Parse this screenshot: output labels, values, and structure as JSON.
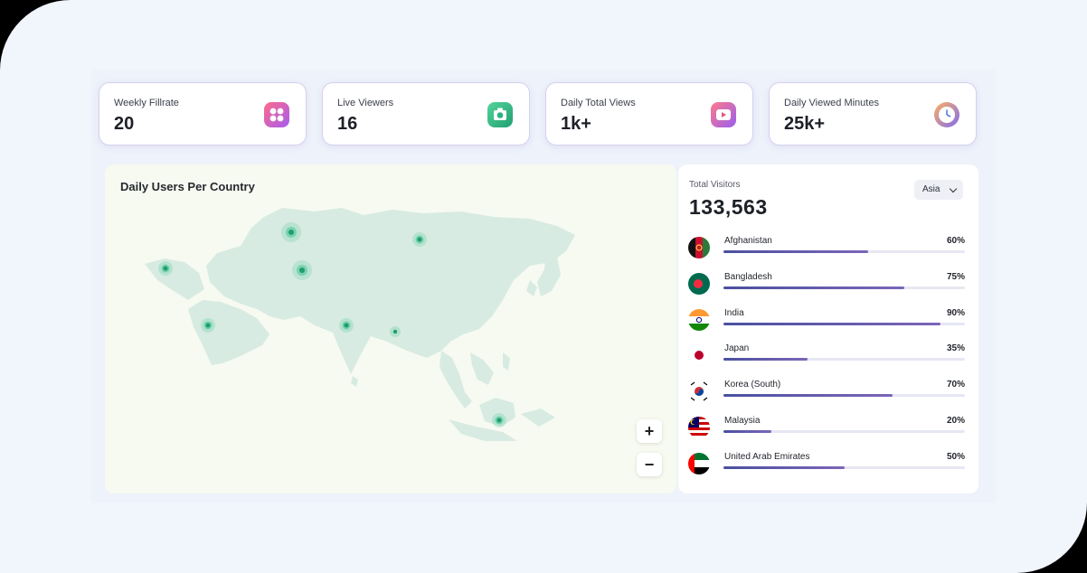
{
  "stats": [
    {
      "label": "Weekly Fillrate",
      "value": "20",
      "icon": "apps-grid-icon"
    },
    {
      "label": "Live Viewers",
      "value": "16",
      "icon": "camera-icon"
    },
    {
      "label": "Daily Total Views",
      "value": "1k+",
      "icon": "play-video-icon"
    },
    {
      "label": "Daily Viewed Minutes",
      "value": "25k+",
      "icon": "clock-icon"
    }
  ],
  "map": {
    "title": "Daily Users Per Country",
    "zoom_in_label": "+",
    "zoom_out_label": "−"
  },
  "visitors": {
    "label": "Total Visitors",
    "value": "133,563",
    "region": "Asia",
    "countries": [
      {
        "name": "Afghanistan",
        "percent": "60%",
        "fraction": 0.6
      },
      {
        "name": "Bangladesh",
        "percent": "75%",
        "fraction": 0.75
      },
      {
        "name": "India",
        "percent": "90%",
        "fraction": 0.9
      },
      {
        "name": "Japan",
        "percent": "35%",
        "fraction": 0.35
      },
      {
        "name": "Korea (South)",
        "percent": "70%",
        "fraction": 0.7
      },
      {
        "name": "Malaysia",
        "percent": "20%",
        "fraction": 0.2
      },
      {
        "name": "United Arab Emirates",
        "percent": "50%",
        "fraction": 0.5
      }
    ]
  },
  "colors": {
    "accent": "#4a50a0",
    "marker": "#2fbf8a",
    "land": "#d8ece4"
  }
}
